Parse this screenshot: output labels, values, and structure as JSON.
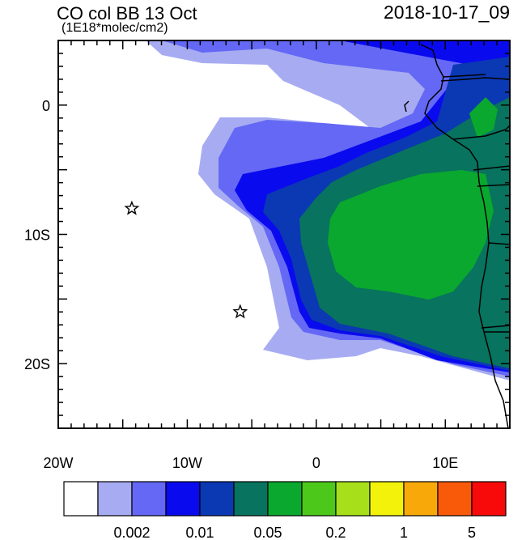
{
  "title_left": "CO col BB 13 Oct",
  "title_right": "2018-10-17_09",
  "units": "(1E18*molec/cm2)",
  "axes": {
    "x": {
      "range": [
        -20,
        15
      ],
      "tick_labels": [
        {
          "value": -20,
          "label": "20W"
        },
        {
          "value": -10,
          "label": "10W"
        },
        {
          "value": 0,
          "label": "0"
        },
        {
          "value": 10,
          "label": "10E"
        }
      ]
    },
    "y": {
      "range": [
        -25,
        5
      ],
      "tick_labels": [
        {
          "value": 0,
          "label": "0"
        },
        {
          "value": -10,
          "label": "10S"
        },
        {
          "value": -20,
          "label": "20S"
        }
      ]
    }
  },
  "markers": [
    {
      "name": "star-1",
      "lon": -14.3,
      "lat": -8.0
    },
    {
      "name": "star-2",
      "lon": -5.9,
      "lat": -16.0
    }
  ],
  "colorbar": {
    "colors": [
      "#ffffff",
      "#a7acf2",
      "#6468f5",
      "#0a0aee",
      "#0a39b3",
      "#08735e",
      "#0aa82e",
      "#4cc81a",
      "#a7e01a",
      "#f2f20a",
      "#f9a80a",
      "#f95a0a",
      "#f90a0a"
    ],
    "labels": [
      {
        "after_index": 1,
        "label": "0.002"
      },
      {
        "after_index": 3,
        "label": "0.01"
      },
      {
        "after_index": 5,
        "label": "0.05"
      },
      {
        "after_index": 7,
        "label": "0.2"
      },
      {
        "after_index": 9,
        "label": "1"
      },
      {
        "after_index": 11,
        "label": "5"
      }
    ]
  }
}
